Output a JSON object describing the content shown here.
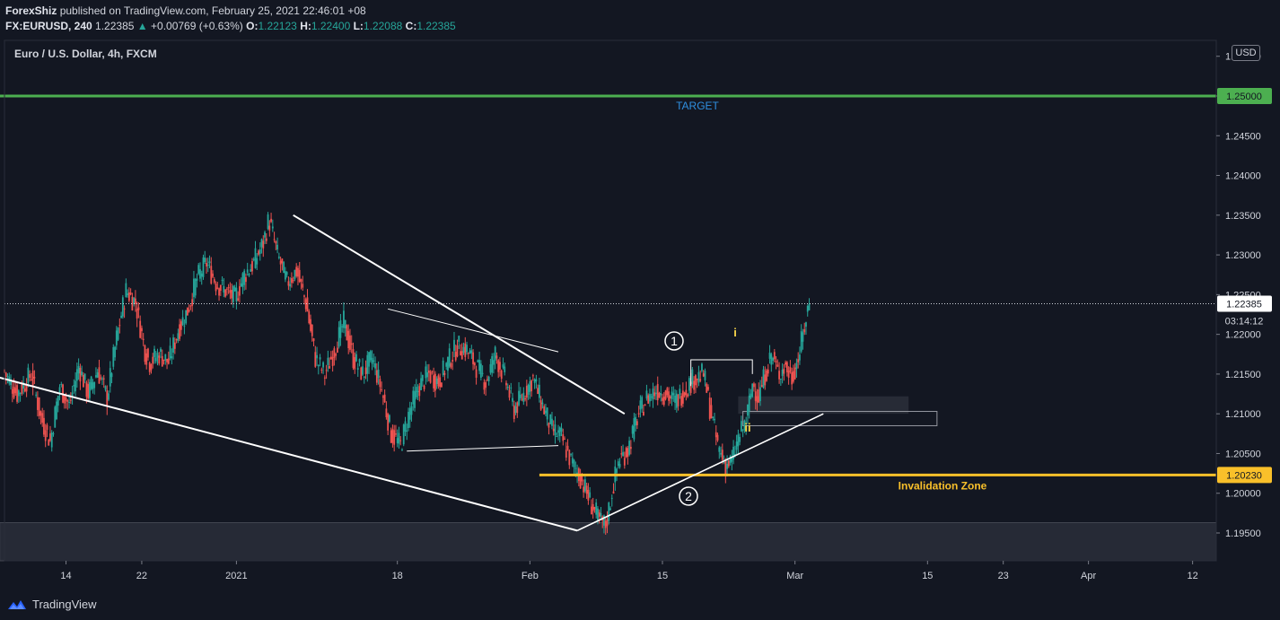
{
  "header": {
    "publisher": "ForexShiz",
    "published_text": "published on TradingView.com, February 25, 2021 22:46:01 +08",
    "symbol": "FX:EURUSD, 240",
    "last": "1.22385",
    "change": "+0.00769 (+0.63%)",
    "ohlc": {
      "o_label": "O:",
      "o": "1.22123",
      "h_label": "H:",
      "h": "1.22400",
      "l_label": "L:",
      "l": "1.22088",
      "c_label": "C:",
      "c": "1.22385"
    }
  },
  "chart_title": "Euro / U.S. Dollar, 4h, FXCM",
  "currency_badge": "USD",
  "footer": {
    "brand": "TradingView"
  },
  "colors": {
    "background": "#131722",
    "up": "#26a69a",
    "down": "#ef5350",
    "target_line": "#4caf50",
    "invalidation_line": "#f9c02a",
    "annotation_white": "#ffffff",
    "target_label": "#2f8fe0",
    "wave_yellow": "#f9d64a"
  },
  "chart_data": {
    "type": "candlestick",
    "symbol": "EURUSD",
    "timeframe": "4h",
    "y_axis": {
      "range": [
        1.1915,
        1.257
      ],
      "ticks": [
        "1.19500",
        "1.20000",
        "1.20500",
        "1.21000",
        "1.21500",
        "1.22000",
        "1.22500",
        "1.23000",
        "1.23500",
        "1.24000",
        "1.24500",
        "1.25000",
        "1.25500"
      ]
    },
    "x_axis": {
      "ticks": [
        {
          "label": "14",
          "day": 0
        },
        {
          "label": "22",
          "day": 8
        },
        {
          "label": "2021",
          "day": 18
        },
        {
          "label": "18",
          "day": 35
        },
        {
          "label": "Feb",
          "day": 49
        },
        {
          "label": "15",
          "day": 63
        },
        {
          "label": "Mar",
          "day": 77
        },
        {
          "label": "15",
          "day": 91
        },
        {
          "label": "23",
          "day": 99
        },
        {
          "label": "Apr",
          "day": 108
        },
        {
          "label": "12",
          "day": 119
        }
      ],
      "day_range": [
        -6.5,
        121.5
      ]
    },
    "price_path": [
      [
        -6.5,
        1.2155
      ],
      [
        -5,
        1.2125
      ],
      [
        -3.5,
        1.215
      ],
      [
        -2.5,
        1.2095
      ],
      [
        -1.5,
        1.2065
      ],
      [
        -0.5,
        1.2135
      ],
      [
        0.5,
        1.211
      ],
      [
        1.5,
        1.216
      ],
      [
        2.5,
        1.2125
      ],
      [
        3.5,
        1.2155
      ],
      [
        4.5,
        1.212
      ],
      [
        5.5,
        1.2195
      ],
      [
        6.5,
        1.2255
      ],
      [
        7.5,
        1.224
      ],
      [
        8.5,
        1.218
      ],
      [
        9,
        1.2165
      ],
      [
        10,
        1.2175
      ],
      [
        11,
        1.2165
      ],
      [
        12,
        1.2205
      ],
      [
        13,
        1.223
      ],
      [
        14,
        1.227
      ],
      [
        15,
        1.229
      ],
      [
        16,
        1.2265
      ],
      [
        17,
        1.2255
      ],
      [
        18,
        1.2245
      ],
      [
        19,
        1.2275
      ],
      [
        20,
        1.229
      ],
      [
        21,
        1.2315
      ],
      [
        21.6,
        1.2345
      ],
      [
        22.5,
        1.23
      ],
      [
        23.5,
        1.2265
      ],
      [
        24.5,
        1.228
      ],
      [
        25.5,
        1.224
      ],
      [
        26.5,
        1.217
      ],
      [
        27.5,
        1.215
      ],
      [
        28.5,
        1.218
      ],
      [
        29.5,
        1.2215
      ],
      [
        30.5,
        1.217
      ],
      [
        31.5,
        1.215
      ],
      [
        32.5,
        1.217
      ],
      [
        33.5,
        1.213
      ],
      [
        34.5,
        1.2075
      ],
      [
        35.5,
        1.206
      ],
      [
        36.5,
        1.2105
      ],
      [
        37.5,
        1.2135
      ],
      [
        38.5,
        1.215
      ],
      [
        39.5,
        1.214
      ],
      [
        40.5,
        1.2165
      ],
      [
        41.5,
        1.2185
      ],
      [
        42.5,
        1.218
      ],
      [
        43.5,
        1.216
      ],
      [
        44.5,
        1.214
      ],
      [
        45.5,
        1.2175
      ],
      [
        46.5,
        1.2145
      ],
      [
        47.5,
        1.2105
      ],
      [
        48.5,
        1.2125
      ],
      [
        49.5,
        1.2145
      ],
      [
        50.5,
        1.211
      ],
      [
        51.5,
        1.208
      ],
      [
        52.5,
        1.207
      ],
      [
        53.5,
        1.204
      ],
      [
        54.5,
        1.202
      ],
      [
        55.5,
        1.199
      ],
      [
        56.5,
        1.1965
      ],
      [
        57.2,
        1.196
      ],
      [
        57.8,
        1.2
      ],
      [
        58.5,
        1.204
      ],
      [
        59.5,
        1.2055
      ],
      [
        60.5,
        1.2095
      ],
      [
        61.5,
        1.212
      ],
      [
        62.5,
        1.213
      ],
      [
        63.5,
        1.2125
      ],
      [
        64.5,
        1.2115
      ],
      [
        65.5,
        1.213
      ],
      [
        66.5,
        1.2145
      ],
      [
        67.5,
        1.215
      ],
      [
        68.3,
        1.21
      ],
      [
        69,
        1.206
      ],
      [
        69.8,
        1.2035
      ],
      [
        70.5,
        1.204
      ],
      [
        71.2,
        1.207
      ],
      [
        72,
        1.209
      ],
      [
        72.7,
        1.214
      ],
      [
        73.3,
        1.212
      ],
      [
        74,
        1.215
      ],
      [
        74.7,
        1.2175
      ],
      [
        75.4,
        1.215
      ],
      [
        76.1,
        1.216
      ],
      [
        76.8,
        1.2145
      ],
      [
        77.5,
        1.217
      ],
      [
        78.1,
        1.2205
      ],
      [
        78.6,
        1.2238
      ]
    ],
    "annotations": {
      "target": {
        "price": 1.25,
        "label": "TARGET",
        "axis_label": "1.25000",
        "from_day": -15
      },
      "invalidation": {
        "price": 1.2023,
        "label": "Invalidation Zone",
        "axis_label": "1.20230",
        "from_day": 50
      },
      "last_price": {
        "price": 1.22385,
        "axis_label": "1.22385",
        "countdown": "03:14:12"
      },
      "wave_labels": [
        "1",
        "2",
        "i",
        "ii"
      ],
      "wedge": {
        "upper": [
          [
            24,
            1.235
          ],
          [
            59,
            1.21
          ]
        ],
        "lower": [
          [
            -10,
            1.2155
          ],
          [
            54,
            1.1953
          ]
        ]
      },
      "inner_triangle": {
        "top": [
          [
            34,
            1.2232
          ],
          [
            52,
            1.2178
          ]
        ],
        "bottom": [
          [
            36,
            1.2053
          ],
          [
            52,
            1.206
          ]
        ]
      },
      "uptrend": [
        [
          54,
          1.1953
        ],
        [
          80,
          1.21
        ]
      ],
      "wave1_box": [
        [
          66,
          1.2168
        ],
        [
          72.5,
          1.2168
        ]
      ],
      "zones": [
        {
          "from_day": 71,
          "to_day": 89,
          "low": 1.21,
          "high": 1.2122
        },
        {
          "from_day": 71.5,
          "to_day": 92,
          "low": 1.2085,
          "high": 1.2103
        },
        {
          "from_day": -7,
          "to_day": 121.5,
          "low": 1.1915,
          "high": 1.1963
        }
      ]
    }
  }
}
